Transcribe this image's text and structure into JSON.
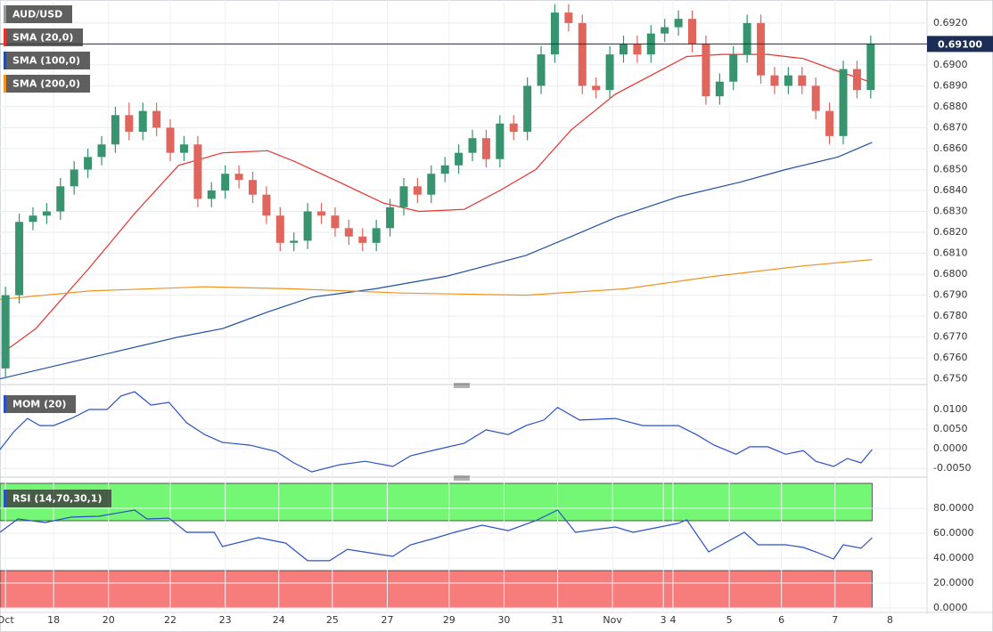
{
  "chart_data": [
    {
      "type": "candlestick",
      "title": "AUD/USD",
      "x": [
        0,
        1,
        2,
        3,
        4,
        5,
        6,
        7,
        8,
        9,
        10,
        11,
        12,
        13,
        14,
        15,
        16,
        17,
        18,
        19,
        20,
        21,
        22,
        23,
        24,
        25,
        26,
        27,
        28,
        29,
        30,
        31,
        32,
        33,
        34,
        35,
        36,
        37,
        38,
        39,
        40,
        41,
        42,
        43,
        44,
        45,
        46,
        47,
        48,
        49,
        50,
        51,
        52,
        53,
        54,
        55,
        56,
        57,
        58,
        59,
        60,
        61,
        62,
        63
      ],
      "open": [
        0.6755,
        0.679,
        0.6825,
        0.6828,
        0.683,
        0.6842,
        0.685,
        0.6856,
        0.6862,
        0.6876,
        0.6868,
        0.6878,
        0.687,
        0.6858,
        0.6862,
        0.6836,
        0.684,
        0.6848,
        0.6845,
        0.6838,
        0.6828,
        0.6815,
        0.6816,
        0.683,
        0.6828,
        0.6822,
        0.6818,
        0.6815,
        0.6822,
        0.6832,
        0.6842,
        0.6838,
        0.6848,
        0.6852,
        0.6858,
        0.6865,
        0.6855,
        0.6872,
        0.6868,
        0.689,
        0.6905,
        0.6925,
        0.692,
        0.689,
        0.6888,
        0.6905,
        0.691,
        0.6905,
        0.6915,
        0.6918,
        0.6922,
        0.691,
        0.6885,
        0.6892,
        0.6905,
        0.692,
        0.6895,
        0.689,
        0.6895,
        0.689,
        0.6878,
        0.6866,
        0.6898,
        0.6888
      ],
      "high": [
        0.6794,
        0.6829,
        0.6832,
        0.6834,
        0.6846,
        0.6854,
        0.686,
        0.6866,
        0.688,
        0.6882,
        0.6882,
        0.6882,
        0.6874,
        0.6866,
        0.6866,
        0.6844,
        0.6852,
        0.6852,
        0.6849,
        0.6842,
        0.6832,
        0.682,
        0.6834,
        0.6834,
        0.6832,
        0.6826,
        0.6822,
        0.6826,
        0.6836,
        0.6846,
        0.6846,
        0.6852,
        0.6856,
        0.6862,
        0.6869,
        0.6869,
        0.6876,
        0.6876,
        0.6894,
        0.6909,
        0.6929,
        0.6929,
        0.6924,
        0.6894,
        0.6909,
        0.6914,
        0.6914,
        0.6919,
        0.6922,
        0.6926,
        0.6926,
        0.6914,
        0.6896,
        0.6909,
        0.6924,
        0.6924,
        0.6899,
        0.6899,
        0.6899,
        0.6894,
        0.6882,
        0.6902,
        0.6902,
        0.6914
      ],
      "low": [
        0.6751,
        0.6786,
        0.6821,
        0.6824,
        0.6826,
        0.6838,
        0.6846,
        0.6852,
        0.6858,
        0.6864,
        0.6864,
        0.6866,
        0.6854,
        0.6854,
        0.6832,
        0.6832,
        0.6836,
        0.6841,
        0.6834,
        0.6824,
        0.6811,
        0.6811,
        0.6812,
        0.6824,
        0.6818,
        0.6814,
        0.6811,
        0.6811,
        0.6818,
        0.6828,
        0.6834,
        0.6834,
        0.6844,
        0.6848,
        0.6854,
        0.6851,
        0.6851,
        0.6864,
        0.6864,
        0.6886,
        0.6901,
        0.6916,
        0.6886,
        0.6884,
        0.6884,
        0.6901,
        0.6901,
        0.6901,
        0.6911,
        0.6914,
        0.6906,
        0.6881,
        0.6881,
        0.6888,
        0.6901,
        0.6891,
        0.6886,
        0.6886,
        0.6886,
        0.6874,
        0.6862,
        0.6862,
        0.6884,
        0.6884
      ],
      "close": [
        0.679,
        0.6825,
        0.6828,
        0.683,
        0.6842,
        0.685,
        0.6856,
        0.6862,
        0.6876,
        0.6868,
        0.6878,
        0.687,
        0.6858,
        0.6862,
        0.6836,
        0.684,
        0.6848,
        0.6845,
        0.6838,
        0.6828,
        0.6815,
        0.6816,
        0.683,
        0.6828,
        0.6822,
        0.6818,
        0.6815,
        0.6822,
        0.6832,
        0.6842,
        0.6838,
        0.6848,
        0.6852,
        0.6858,
        0.6865,
        0.6855,
        0.6872,
        0.6868,
        0.689,
        0.6905,
        0.6925,
        0.692,
        0.689,
        0.6888,
        0.6905,
        0.691,
        0.6905,
        0.6915,
        0.6918,
        0.6922,
        0.691,
        0.6885,
        0.6892,
        0.6905,
        0.692,
        0.6895,
        0.689,
        0.6895,
        0.689,
        0.6878,
        0.6866,
        0.6898,
        0.6888,
        0.691
      ],
      "up_color": "#37946e",
      "down_color": "#e0655c",
      "overlays": [
        {
          "name": "SMA (20,0)",
          "color": "#e8322c",
          "x": [
            -0.3,
            2.2,
            6.1,
            9.4,
            12.6,
            15.8,
            19.1,
            21.0,
            24.3,
            27.5,
            30.1,
            33.4,
            36.0,
            38.6,
            41.2,
            44.4,
            47.0,
            49.6,
            52.2,
            55.5,
            58.1,
            60.6,
            62.9
          ],
          "values": [
            0.6762,
            0.6774,
            0.6803,
            0.6829,
            0.6852,
            0.6858,
            0.6859,
            0.6854,
            0.6844,
            0.6834,
            0.683,
            0.6831,
            0.684,
            0.685,
            0.6869,
            0.6886,
            0.6895,
            0.6904,
            0.6905,
            0.6905,
            0.6903,
            0.6897,
            0.6892
          ]
        },
        {
          "name": "SMA (100,0)",
          "color": "#1f4fa0",
          "x": [
            -0.4,
            6.1,
            12.6,
            15.8,
            19.1,
            22.3,
            26.9,
            32.1,
            37.9,
            41.2,
            44.4,
            49.0,
            53.5,
            56.8,
            60.6,
            63.1
          ],
          "values": [
            0.675,
            0.676,
            0.677,
            0.6774,
            0.6782,
            0.6789,
            0.6793,
            0.6799,
            0.6809,
            0.6818,
            0.6827,
            0.6837,
            0.6844,
            0.685,
            0.6856,
            0.6863
          ]
        },
        {
          "name": "SMA (200,0)",
          "color": "#f0931e",
          "x": [
            -0.4,
            6.1,
            14.5,
            21.0,
            28.8,
            37.9,
            45.1,
            51.6,
            58.1,
            63.1
          ],
          "values": [
            0.6788,
            0.6792,
            0.6794,
            0.6793,
            0.6791,
            0.679,
            0.6793,
            0.6799,
            0.6804,
            0.6807
          ]
        }
      ],
      "xlim": [
        -0.4,
        67.1
      ],
      "xticks": [
        {
          "value": 0,
          "label": "Oct"
        },
        {
          "value": 3.5,
          "label": "18"
        },
        {
          "value": 7.5,
          "label": "20"
        },
        {
          "value": 12.0,
          "label": "22"
        },
        {
          "value": 16.0,
          "label": "23"
        },
        {
          "value": 19.9,
          "label": "24"
        },
        {
          "value": 23.8,
          "label": "25"
        },
        {
          "value": 27.8,
          "label": "27"
        },
        {
          "value": 32.3,
          "label": "29"
        },
        {
          "value": 36.3,
          "label": "30"
        },
        {
          "value": 40.2,
          "label": "31"
        },
        {
          "value": 44.2,
          "label": "Nov"
        },
        {
          "value": 47.9,
          "label": "3"
        },
        {
          "value": 48.6,
          "label": "4"
        },
        {
          "value": 52.7,
          "label": "5"
        },
        {
          "value": 56.5,
          "label": "6"
        },
        {
          "value": 60.4,
          "label": "7"
        },
        {
          "value": 64.4,
          "label": "8"
        }
      ],
      "ylim": [
        0.6749,
        0.6931
      ],
      "yticks": [
        {
          "value": 0.675,
          "label": "0.6750"
        },
        {
          "value": 0.676,
          "label": "0.6760"
        },
        {
          "value": 0.677,
          "label": "0.6770"
        },
        {
          "value": 0.678,
          "label": "0.6780"
        },
        {
          "value": 0.679,
          "label": "0.6790"
        },
        {
          "value": 0.68,
          "label": "0.6800"
        },
        {
          "value": 0.681,
          "label": "0.6810"
        },
        {
          "value": 0.682,
          "label": "0.6820"
        },
        {
          "value": 0.683,
          "label": "0.6830"
        },
        {
          "value": 0.684,
          "label": "0.6840"
        },
        {
          "value": 0.685,
          "label": "0.6850"
        },
        {
          "value": 0.686,
          "label": "0.6860"
        },
        {
          "value": 0.687,
          "label": "0.6870"
        },
        {
          "value": 0.688,
          "label": "0.6880"
        },
        {
          "value": 0.689,
          "label": "0.6890"
        },
        {
          "value": 0.69,
          "label": "0.6900"
        },
        {
          "value": 0.691,
          "label": "0.6910"
        },
        {
          "value": 0.692,
          "label": "0.6920"
        }
      ],
      "grid": true,
      "last_price": {
        "value": 0.691,
        "label": "0.69100"
      },
      "last_price_color": "#1c2e55"
    },
    {
      "type": "line",
      "series": [
        {
          "name": "MOM (20)",
          "color": "#2a50c8",
          "x": [
            -0.4,
            0.6,
            1.6,
            2.5,
            3.5,
            4.8,
            6.1,
            7.4,
            8.4,
            9.4,
            10.6,
            11.9,
            13.2,
            14.5,
            15.8,
            17.8,
            19.7,
            21.0,
            22.3,
            24.3,
            26.2,
            28.2,
            29.5,
            31.4,
            33.4,
            35.0,
            36.6,
            37.9,
            39.2,
            40.2,
            41.8,
            44.4,
            46.4,
            49.0,
            50.3,
            51.6,
            53.2,
            54.2,
            55.5,
            56.8,
            58.1,
            59.0,
            60.3,
            61.3,
            62.3,
            63.1
          ],
          "values": [
            -0.0002,
            0.0043,
            0.0077,
            0.0059,
            0.0059,
            0.0077,
            0.01,
            0.01,
            0.0134,
            0.0145,
            0.0111,
            0.0118,
            0.0066,
            0.0036,
            0.0016,
            0.0009,
            -0.0007,
            -0.0036,
            -0.0059,
            -0.0041,
            -0.0032,
            -0.0045,
            -0.0018,
            -0.0002,
            0.0014,
            0.0048,
            0.0036,
            0.0059,
            0.0073,
            0.0105,
            0.0073,
            0.0077,
            0.0059,
            0.0059,
            0.0036,
            0.0009,
            -0.0014,
            0.0005,
            0.0005,
            -0.0014,
            -0.0005,
            -0.0032,
            -0.0045,
            -0.0025,
            -0.0036,
            -0.0002
          ]
        }
      ],
      "ylim": [
        -0.007,
        0.0152
      ],
      "yticks": [
        {
          "value": 0.01,
          "label": "0.0100"
        },
        {
          "value": 0.005,
          "label": "0.0050"
        },
        {
          "value": 0,
          "label": "0.0000"
        },
        {
          "value": -0.005,
          "label": "-0.0050"
        }
      ],
      "grid": true
    },
    {
      "type": "line",
      "series": [
        {
          "name": "RSI (14,70,30,1)",
          "color": "#2a50c8",
          "x": [
            -0.4,
            0.9,
            2.9,
            4.8,
            6.8,
            9.4,
            10.3,
            11.9,
            13.2,
            15.2,
            15.8,
            18.4,
            20.4,
            22.0,
            23.6,
            24.9,
            26.9,
            28.2,
            29.5,
            31.4,
            32.7,
            34.7,
            36.6,
            38.6,
            40.2,
            41.5,
            44.4,
            45.7,
            49.0,
            49.6,
            51.2,
            53.8,
            54.8,
            56.8,
            58.1,
            59.0,
            60.3,
            61.0,
            62.3,
            63.1
          ],
          "values": [
            60.7,
            71.4,
            68.6,
            72.9,
            73.6,
            78.6,
            71.4,
            72.1,
            60.7,
            60.7,
            49.3,
            56.4,
            52.1,
            37.9,
            37.9,
            47.1,
            43.6,
            41.4,
            50.7,
            56.4,
            60.7,
            66.4,
            62.1,
            70.0,
            78.6,
            60.7,
            65.0,
            60.7,
            67.9,
            70.7,
            45.0,
            60.7,
            50.7,
            50.7,
            48.6,
            45.0,
            39.3,
            50.7,
            47.9,
            56.4
          ]
        }
      ],
      "zones": [
        {
          "from": 70,
          "to": 100,
          "color": "#74f774"
        },
        {
          "from": 0,
          "to": 30,
          "color": "#f77d7d"
        }
      ],
      "ylim": [
        0,
        100
      ],
      "yticks": [
        {
          "value": 80,
          "label": "80.0000"
        },
        {
          "value": 60,
          "label": "60.0000"
        },
        {
          "value": 40,
          "label": "40.0000"
        },
        {
          "value": 20,
          "label": "20.0000"
        },
        {
          "value": 0,
          "label": "0.0000"
        }
      ],
      "grid": true
    }
  ]
}
